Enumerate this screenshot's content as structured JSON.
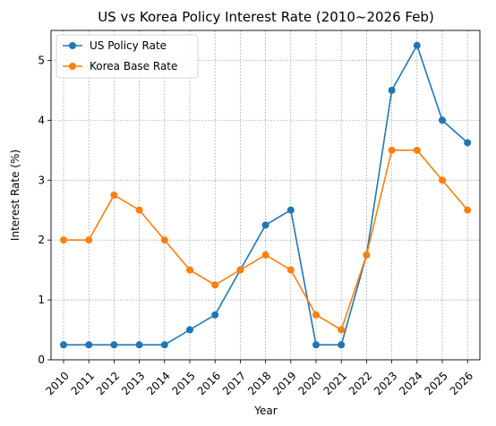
{
  "chart_data": {
    "type": "line",
    "title": "US vs Korea Policy Interest Rate (2010~2026 Feb)",
    "xlabel": "Year",
    "ylabel": "Interest Rate (%)",
    "x": [
      "2010",
      "2011",
      "2012",
      "2013",
      "2014",
      "2015",
      "2016",
      "2017",
      "2018",
      "2019",
      "2020",
      "2021",
      "2022",
      "2023",
      "2024",
      "2025",
      "2026"
    ],
    "ylim": [
      0,
      5.5
    ],
    "yticks": [
      0,
      1,
      2,
      3,
      4,
      5
    ],
    "grid": true,
    "legend_position": "top-left",
    "series": [
      {
        "name": "US Policy Rate",
        "color": "#1f77b4",
        "values": [
          0.25,
          0.25,
          0.25,
          0.25,
          0.25,
          0.5,
          0.75,
          1.5,
          2.25,
          2.5,
          0.25,
          0.25,
          1.75,
          4.5,
          5.25,
          4.0,
          3.625
        ]
      },
      {
        "name": "Korea Base Rate",
        "color": "#ff7f0e",
        "values": [
          2.0,
          2.0,
          2.75,
          2.5,
          2.0,
          1.5,
          1.25,
          1.5,
          1.75,
          1.5,
          0.75,
          0.5,
          1.75,
          3.5,
          3.5,
          3.0,
          2.5
        ]
      }
    ]
  }
}
